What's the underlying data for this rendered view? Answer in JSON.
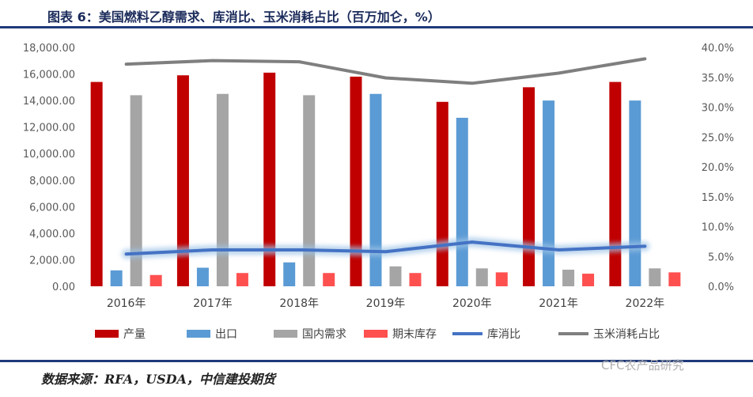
{
  "title": "图表 6：美国燃料乙醇需求、库消比、玉米消耗占比（百万加仑，%）",
  "source": "数据来源：RFA，USDA，中信建投期货",
  "watermark": "CFC农产品研究",
  "colors": {
    "production": "#c00000",
    "export": "#5b9bd5",
    "domestic": "#a5a5a5",
    "ending_stock": "#ff5050",
    "stock_to_use": "#4472c4",
    "corn_share": "#7f7f7f",
    "axis_text": "#595959",
    "rule": "#1f3a7a"
  },
  "chart_data": {
    "type": "bar",
    "categories": [
      "2016年",
      "2017年",
      "2018年",
      "2019年",
      "2020年",
      "2021年",
      "2022年"
    ],
    "series": [
      {
        "name": "产量",
        "kind": "bar",
        "axis": "left",
        "values": [
          15400,
          15900,
          16100,
          15800,
          13900,
          15000,
          15400
        ]
      },
      {
        "name": "出口",
        "kind": "bar",
        "axis": "left",
        "values": [
          1200,
          1400,
          1800,
          14500,
          12700,
          14000,
          14000
        ]
      },
      {
        "name": "国内需求",
        "kind": "bar",
        "axis": "left",
        "values": [
          14400,
          14500,
          14400,
          1500,
          1350,
          1250,
          1350
        ]
      },
      {
        "name": "期末库存",
        "kind": "bar",
        "axis": "left",
        "values": [
          850,
          1000,
          1000,
          1000,
          1050,
          950,
          1050
        ]
      },
      {
        "name": "库消比",
        "kind": "line",
        "axis": "right",
        "values": [
          5.4,
          6.1,
          6.1,
          5.8,
          7.4,
          6.1,
          6.7
        ]
      },
      {
        "name": "玉米消耗占比",
        "kind": "line",
        "axis": "right",
        "values": [
          37.2,
          37.8,
          37.6,
          34.9,
          34.0,
          35.7,
          38.1
        ]
      }
    ],
    "left_axis": {
      "ylim": [
        0,
        18000
      ],
      "ticks": [
        "0.00",
        "2,000.00",
        "4,000.00",
        "6,000.00",
        "8,000.00",
        "10,000.00",
        "12,000.00",
        "14,000.00",
        "16,000.00",
        "18,000.00"
      ]
    },
    "right_axis": {
      "ylim": [
        0,
        40
      ],
      "ticks": [
        "0.0%",
        "5.0%",
        "10.0%",
        "15.0%",
        "20.0%",
        "25.0%",
        "30.0%",
        "35.0%",
        "40.0%"
      ]
    },
    "legend_position": "bottom",
    "grid": false
  }
}
